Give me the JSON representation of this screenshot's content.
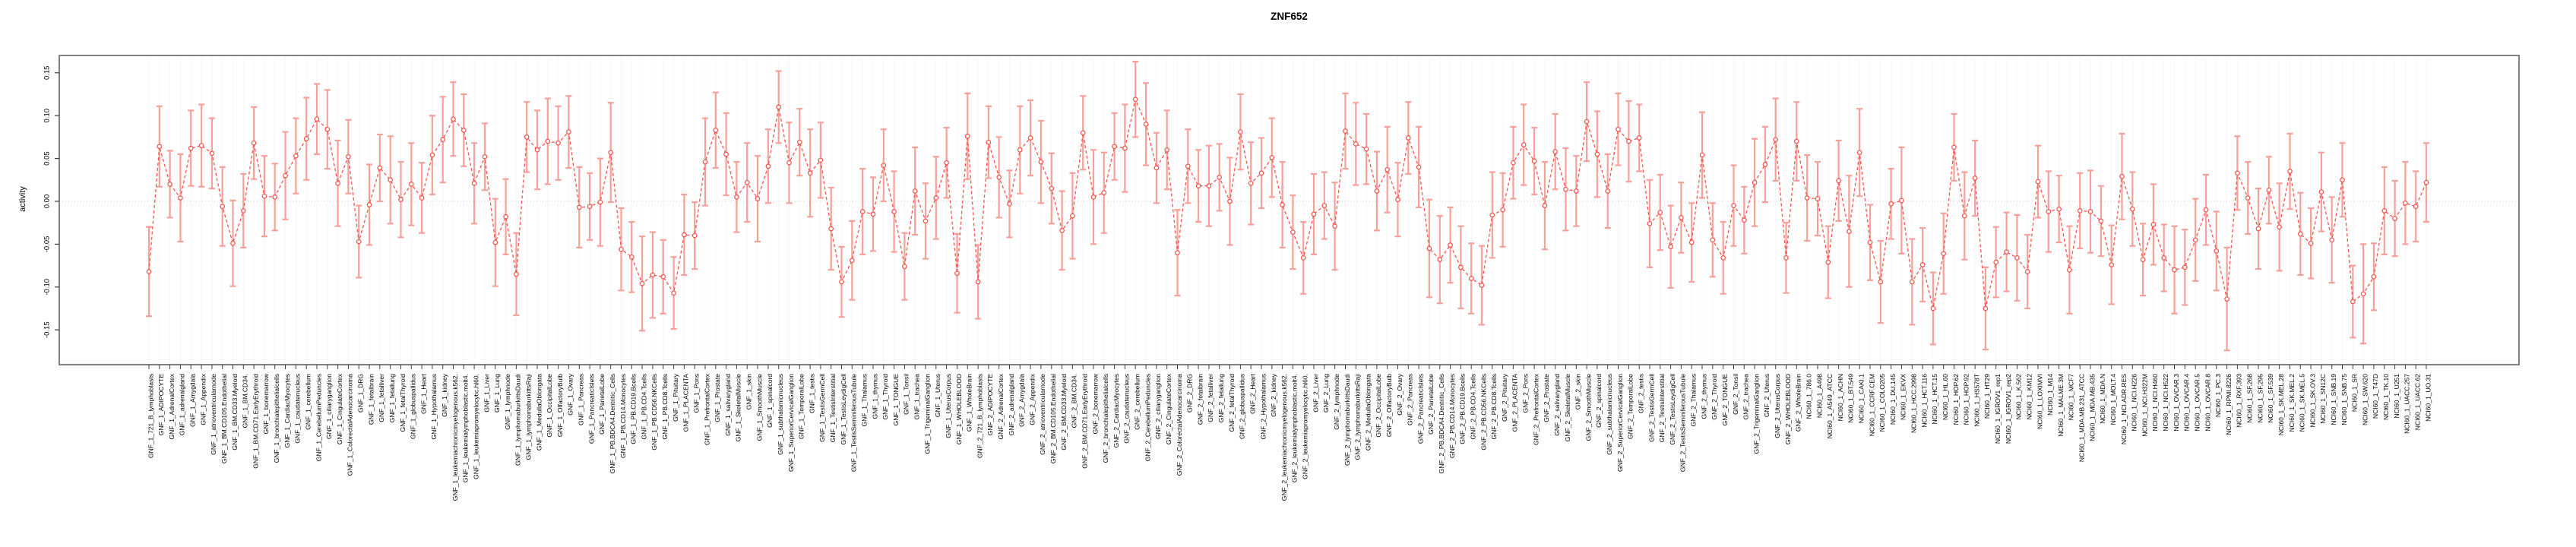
{
  "chart_data": {
    "type": "scatter",
    "title": "ZNF652",
    "ylabel": "activity",
    "xlabel": "",
    "ylim": [
      -0.19,
      0.175
    ],
    "yticks": [
      "0.15",
      "0.10",
      "0.05",
      "0.00",
      "-0.05",
      "-0.10",
      "-0.15"
    ],
    "grid": "vertical dotted gridline at every category; dotted horizontal line at 0.00",
    "legend": "none",
    "marker": "open-circle with vertical error bars, dashed connecting line",
    "colors": {
      "point": "#f4564e",
      "line": "#f4564e",
      "errorbar": "#f7a09a",
      "grid": "#dcdcdc",
      "zero_line": "#d6d6d6",
      "border": "#808080",
      "tick": "#404040",
      "text": "#000000"
    },
    "categories": [
      "GNF_1_721_B_lymphoblasts",
      "GNF_1_ADIPOCYTE",
      "GNF_1_AdrenalCortex",
      "GNF_1_adrenalgland",
      "GNF_1_Amygdala",
      "GNF_1_Appendix",
      "GNF_1_atrioventricularnode",
      "GNF_1_BM.CD105.Endothelial",
      "GNF_1_BM.CD33.Myeloid",
      "GNF_1_BM.CD34.",
      "GNF_1_BM.CD71.EarlyErythroid",
      "GNF_1_bonemarrow",
      "GNF_1_bronchialepithelialcells",
      "GNF_1_CardiacMyocytes",
      "GNF_1_caudatenucleus",
      "GNF_1_cerebellum",
      "GNF_1_CerebellumPeduncles",
      "GNF_1_ciliaryganglion",
      "GNF_1_CingulateCortex",
      "GNF_1_ColorectalAdenocarcinoma",
      "GNF_1_DRG",
      "GNF_1_fetalbrain",
      "GNF_1_fetalliver",
      "GNF_1_fetallung",
      "GNF_1_fetalThyroid",
      "GNF_1_globuspallidus",
      "GNF_1_Heart",
      "GNF_1_Hypothalamus",
      "GNF_1_kidney",
      "GNF_1_leukemiachronicmyelogenous.k562.",
      "GNF_1_leukemialymphoblastic.molt4.",
      "GNF_1_leukemiapromyelocytic.hl60.",
      "GNF_1_Liver",
      "GNF_1_Lung",
      "GNF_1_lymphnode",
      "GNF_1_lymphomaburkittsDaudi",
      "GNF_1_lymphomaburkittsRaji",
      "GNF_1_MedullaOblongata",
      "GNF_1_OccipitalLobe",
      "GNF_1_OlfactoryBulb",
      "GNF_1_Ovary",
      "GNF_1_Pancreas",
      "GNF_1_PancreaticIslets",
      "GNF_1_ParietalLobe",
      "GNF_1_PB.BDCA4.Dentritic_Cells",
      "GNF_1_PB.CD14.Monocytes",
      "GNF_1_PB.CD19.Bcells",
      "GNF_1_PB.CD4.Tcells",
      "GNF_1_PB.CD56.NKCells",
      "GNF_1_PB.CD8.Tcells",
      "GNF_1_Pituitary",
      "GNF_1_PLACENTA",
      "GNF_1_Pons",
      "GNF_1_PrefrontalCortex",
      "GNF_1_Prostate",
      "GNF_1_salivarygland",
      "GNF_1_SkeletalMuscle",
      "GNF_1_skin",
      "GNF_1_SmoothMuscle",
      "GNF_1_spinalcord",
      "GNF_1_subthalamicnucleus",
      "GNF_1_SuperiorCervicalGanglion",
      "GNF_1_TemporalLobe",
      "GNF_1_testis",
      "GNF_1_TestisGermCell",
      "GNF_1_TestisInterstitial",
      "GNF_1_TestisLeydigCell",
      "GNF_1_TestisSeminiferousTubule",
      "GNF_1_Thalamus",
      "GNF_1_thymus",
      "GNF_1_Thyroid",
      "GNF_1_TONGUE",
      "GNF_1_Tonsil",
      "GNF_1_trachea",
      "GNF_1_TrigeminalGanglion",
      "GNF_1_Uterus",
      "GNF_1_UterusCorpus",
      "GNF_1_WHOLEBLOOD",
      "GNF_1_WholeBrain",
      "GNF_2_721_B_lymphoblasts",
      "GNF_2_ADIPOCYTE",
      "GNF_2_AdrenalCortex",
      "GNF_2_adrenalgland",
      "GNF_2_Amygdala",
      "GNF_2_Appendix",
      "GNF_2_atrioventricularnode",
      "GNF_2_BM.CD105.Endothelial",
      "GNF_2_BM.CD33.Myeloid",
      "GNF_2_BM.CD34.",
      "GNF_2_BM.CD71.EarlyErythroid",
      "GNF_2_bonemarrow",
      "GNF_2_bronchialepithelialcells",
      "GNF_2_CardiacMyocytes",
      "GNF_2_caudatenucleus",
      "GNF_2_cerebellum",
      "GNF_2_CerebellumPeduncles",
      "GNF_2_ciliaryganglion",
      "GNF_2_CingulateCortex",
      "GNF_2_ColorectalAdenocarcinoma",
      "GNF_2_DRG",
      "GNF_2_fetalbrain",
      "GNF_2_fetalliver",
      "GNF_2_fetallung",
      "GNF_2_fetalThyroid",
      "GNF_2_globuspallidus",
      "GNF_2_Heart",
      "GNF_2_Hypothalamus",
      "GNF_2_kidney",
      "GNF_2_leukemiachronicmyelogenous.k562.",
      "GNF_2_leukemialymphoblastic.molt4.",
      "GNF_2_leukemiapromyelocytic.hl60.",
      "GNF_2_Liver",
      "GNF_2_Lung",
      "GNF_2_lymphnode",
      "GNF_2_lymphomaburkittsDaudi",
      "GNF_2_lymphomaburkittsRaji",
      "GNF_2_MedullaOblongata",
      "GNF_2_OccipitalLobe",
      "GNF_2_OlfactoryBulb",
      "GNF_2_Ovary",
      "GNF_2_Pancreas",
      "GNF_2_PancreaticIslets",
      "GNF_2_ParietalLobe",
      "GNF_2_PB.BDCA4.Dentritic_Cells",
      "GNF_2_PB.CD14.Monocytes",
      "GNF_2_PB.CD19.Bcells",
      "GNF_2_PB.CD4.Tcells",
      "GNF_2_PB.CD56.NKCells",
      "GNF_2_PB.CD8.Tcells",
      "GNF_2_Pituitary",
      "GNF_2_PLACENTA",
      "GNF_2_Pons",
      "GNF_2_PrefrontalCortex",
      "GNF_2_Prostate",
      "GNF_2_salivarygland",
      "GNF_2_SkeletalMuscle",
      "GNF_2_skin",
      "GNF_2_SmoothMuscle",
      "GNF_2_spinalcord",
      "GNF_2_subthalamicnucleus",
      "GNF_2_SuperiorCervicalGanglion",
      "GNF_2_TemporalLobe",
      "GNF_2_testis",
      "GNF_2_TestisGermCell",
      "GNF_2_TestisInterstitial",
      "GNF_2_TestisLeydigCell",
      "GNF_2_TestisSeminiferousTubule",
      "GNF_2_Thalamus",
      "GNF_2_thymus",
      "GNF_2_Thyroid",
      "GNF_2_TONGUE",
      "GNF_2_Tonsil",
      "GNF_2_trachea",
      "GNF_2_TrigeminalGanglion",
      "GNF_2_Uterus",
      "GNF_2_UterusCorpus",
      "GNF_2_WHOLEBLOOD",
      "GNF_2_WholeBrain",
      "NCI60_1_786.0",
      "NCI60_1_A498",
      "NCI60_1_A549_ATCC",
      "NCI60_1_ACHN",
      "NCI60_1_BT.549",
      "NCI60_1_CAKI.1",
      "NCI60_1_CCRF.CEM",
      "NCI60_1_COLO205",
      "NCI60_1_DU.145",
      "NCI60_1_EKVX",
      "NCI60_1_HCC.2998",
      "NCI60_1_HCT.116",
      "NCI60_1_HCT.15",
      "NCI60_1_HL.60",
      "NCI60_1_HOP.62",
      "NCI60_1_HOP.92",
      "NCI60_1_HS578T",
      "NCI60_1_HT29",
      "NCI60_1_IGROV1_rep1",
      "NCI60_1_IGROV1_rep2",
      "NCI60_1_K.562",
      "NCI60_1_KM12",
      "NCI60_1_LOXIMVI",
      "NCI60_1_M14",
      "NCI60_1_MALME.3M",
      "NCI60_1_MCF7",
      "NCI60_1_MDA.MB.231_ATCC",
      "NCI60_1_MDA.MB.435",
      "NCI60_1_MDA.N",
      "NCI60_1_MOLT.4",
      "NCI60_1_NCI.ADR.RES",
      "NCI60_1_NCI.H226",
      "NCI60_1_NCI.H322M",
      "NCI60_1_NCI.H460",
      "NCI60_1_NCI.H522",
      "NCI60_1_OVCAR.3",
      "NCI60_1_OVCAR.4",
      "NCI60_1_OVCAR.5",
      "NCI60_1_OVCAR.8",
      "NCI60_1_PC.3",
      "NCI60_1_RPMI.8226",
      "NCI60_1_RXF.393",
      "NCI60_1_SF.268",
      "NCI60_1_SF.295",
      "NCI60_1_SF.539",
      "NCI60_1_SK.MEL.28",
      "NCI60_1_SK.MEL.2",
      "NCI60_1_SK.MEL.5",
      "NCI60_1_SK.OV.3",
      "NCI60_1_SN12C",
      "NCI60_1_SNB.19",
      "NCI60_1_SNB.75",
      "NCI60_1_SR",
      "NCI60_1_SW.620",
      "NCI60_1_T47D",
      "NCI60_1_TK.10",
      "NCI60_1_U251",
      "NCI60_1_UACC.257",
      "NCI60_1_UACC.62",
      "NCI60_1_UO.31"
    ],
    "values": [
      -0.082,
      0.064,
      0.02,
      0.004,
      0.062,
      0.065,
      0.056,
      -0.006,
      -0.049,
      -0.011,
      0.068,
      0.006,
      0.005,
      0.03,
      0.053,
      0.073,
      0.096,
      0.084,
      0.021,
      0.052,
      -0.047,
      -0.004,
      0.039,
      0.025,
      0.002,
      0.02,
      0.004,
      0.054,
      0.072,
      0.096,
      0.083,
      0.021,
      0.052,
      -0.048,
      -0.018,
      -0.085,
      0.075,
      0.06,
      0.07,
      0.068,
      0.081,
      -0.007,
      -0.006,
      -0.001,
      0.057,
      -0.056,
      -0.065,
      -0.096,
      -0.086,
      -0.088,
      -0.107,
      -0.039,
      -0.04,
      0.046,
      0.083,
      0.055,
      0.005,
      0.022,
      0.003,
      0.041,
      0.11,
      0.045,
      0.069,
      0.033,
      0.048,
      -0.032,
      -0.094,
      -0.069,
      -0.012,
      -0.015,
      0.042,
      -0.012,
      -0.076,
      0.012,
      -0.023,
      0.004,
      0.045,
      -0.084,
      0.076,
      -0.094,
      0.069,
      0.028,
      -0.003,
      0.06,
      0.074,
      0.046,
      0.015,
      -0.034,
      -0.017,
      0.08,
      0.005,
      0.01,
      0.064,
      0.062,
      0.119,
      0.09,
      0.039,
      0.06,
      -0.06,
      0.041,
      0.018,
      0.018,
      0.028,
      0.0,
      0.081,
      0.021,
      0.033,
      0.051,
      -0.004,
      -0.036,
      -0.066,
      -0.015,
      -0.005,
      -0.029,
      0.082,
      0.067,
      0.061,
      0.012,
      0.037,
      0.002,
      0.074,
      0.04,
      -0.055,
      -0.068,
      -0.051,
      -0.077,
      -0.09,
      -0.098,
      -0.016,
      -0.01,
      0.045,
      0.066,
      0.047,
      -0.005,
      0.058,
      0.014,
      0.012,
      0.093,
      0.055,
      0.012,
      0.084,
      0.07,
      0.074,
      -0.026,
      -0.013,
      -0.053,
      -0.019,
      -0.048,
      0.054,
      -0.045,
      -0.066,
      -0.005,
      -0.022,
      0.022,
      0.043,
      0.072,
      -0.066,
      0.07,
      0.004,
      0.003,
      -0.071,
      0.024,
      -0.035,
      0.057,
      -0.048,
      -0.094,
      -0.003,
      0.001,
      -0.094,
      -0.074,
      -0.125,
      -0.061,
      0.063,
      -0.017,
      0.027,
      -0.125,
      -0.071,
      -0.059,
      -0.066,
      -0.082,
      0.023,
      -0.012,
      -0.009,
      -0.08,
      -0.011,
      -0.012,
      -0.023,
      -0.074,
      0.029,
      -0.009,
      -0.068,
      -0.027,
      -0.066,
      -0.08,
      -0.077,
      -0.045,
      -0.01,
      -0.058,
      -0.114,
      0.033,
      0.004,
      -0.032,
      0.013,
      -0.03,
      0.035,
      -0.038,
      -0.049,
      0.011,
      -0.045,
      0.025,
      -0.117,
      -0.108,
      -0.088,
      -0.011,
      -0.02,
      -0.002,
      -0.006,
      0.022
    ],
    "errors": [
      0.052,
      0.047,
      0.039,
      0.051,
      0.044,
      0.048,
      0.041,
      0.046,
      0.05,
      0.043,
      0.042,
      0.047,
      0.039,
      0.051,
      0.044,
      0.048,
      0.041,
      0.046,
      0.05,
      0.043,
      0.042,
      0.047,
      0.039,
      0.051,
      0.044,
      0.048,
      0.041,
      0.046,
      0.05,
      0.043,
      0.042,
      0.047,
      0.039,
      0.051,
      0.044,
      0.048,
      0.041,
      0.046,
      0.05,
      0.043,
      0.042,
      0.047,
      0.039,
      0.051,
      0.058,
      0.048,
      0.041,
      0.055,
      0.05,
      0.043,
      0.042,
      0.047,
      0.039,
      0.051,
      0.044,
      0.048,
      0.041,
      0.046,
      0.05,
      0.043,
      0.042,
      0.047,
      0.039,
      0.051,
      0.044,
      0.048,
      0.041,
      0.046,
      0.05,
      0.043,
      0.042,
      0.047,
      0.039,
      0.051,
      0.044,
      0.048,
      0.041,
      0.046,
      0.05,
      0.043,
      0.042,
      0.047,
      0.039,
      0.051,
      0.044,
      0.048,
      0.041,
      0.046,
      0.05,
      0.043,
      0.055,
      0.047,
      0.039,
      0.051,
      0.044,
      0.048,
      0.041,
      0.046,
      0.05,
      0.043,
      0.042,
      0.047,
      0.039,
      0.051,
      0.044,
      0.048,
      0.041,
      0.046,
      0.05,
      0.043,
      0.042,
      0.047,
      0.039,
      0.051,
      0.044,
      0.048,
      0.041,
      0.046,
      0.05,
      0.043,
      0.042,
      0.047,
      0.057,
      0.051,
      0.044,
      0.048,
      0.041,
      0.046,
      0.05,
      0.043,
      0.042,
      0.047,
      0.039,
      0.051,
      0.044,
      0.048,
      0.041,
      0.046,
      0.05,
      0.043,
      0.042,
      0.047,
      0.039,
      0.051,
      0.044,
      0.048,
      0.041,
      0.046,
      0.05,
      0.043,
      0.042,
      0.047,
      0.039,
      0.051,
      0.044,
      0.048,
      0.041,
      0.046,
      0.05,
      0.043,
      0.042,
      0.047,
      0.065,
      0.051,
      0.044,
      0.048,
      0.041,
      0.062,
      0.05,
      0.043,
      0.042,
      0.047,
      0.039,
      0.051,
      0.044,
      0.048,
      0.041,
      0.046,
      0.05,
      0.043,
      0.042,
      0.047,
      0.039,
      0.051,
      0.044,
      0.048,
      0.041,
      0.046,
      0.05,
      0.043,
      0.042,
      0.047,
      0.039,
      0.051,
      0.044,
      0.048,
      0.041,
      0.046,
      0.06,
      0.043,
      0.042,
      0.047,
      0.039,
      0.051,
      0.044,
      0.048,
      0.041,
      0.046,
      0.05,
      0.043,
      0.042,
      0.058,
      0.039,
      0.051,
      0.044,
      0.048,
      0.041,
      0.046
    ]
  }
}
